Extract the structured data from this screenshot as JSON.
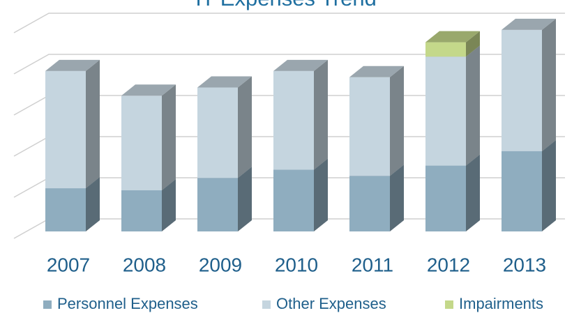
{
  "chart_data": {
    "type": "bar3d_stacked",
    "title": "IT Expenses Trend",
    "categories": [
      "2007",
      "2008",
      "2009",
      "2010",
      "2011",
      "2012",
      "2013"
    ],
    "series": [
      {
        "name": "Personnel Expenses",
        "color": "#8fadbf",
        "values": [
          1.05,
          1.0,
          1.3,
          1.5,
          1.35,
          1.6,
          1.95
        ]
      },
      {
        "name": "Other Expenses",
        "color": "#c5d5df",
        "values": [
          2.85,
          2.3,
          2.2,
          2.4,
          2.4,
          2.65,
          2.95
        ]
      },
      {
        "name": "Impairments",
        "color": "#c4d88a",
        "values": [
          0,
          0,
          0,
          0,
          0,
          0.35,
          0
        ]
      }
    ],
    "ylim": [
      0,
      5
    ],
    "yticks": [
      0,
      1,
      2,
      3,
      4,
      5
    ],
    "grid": true,
    "legend": "bottom"
  }
}
